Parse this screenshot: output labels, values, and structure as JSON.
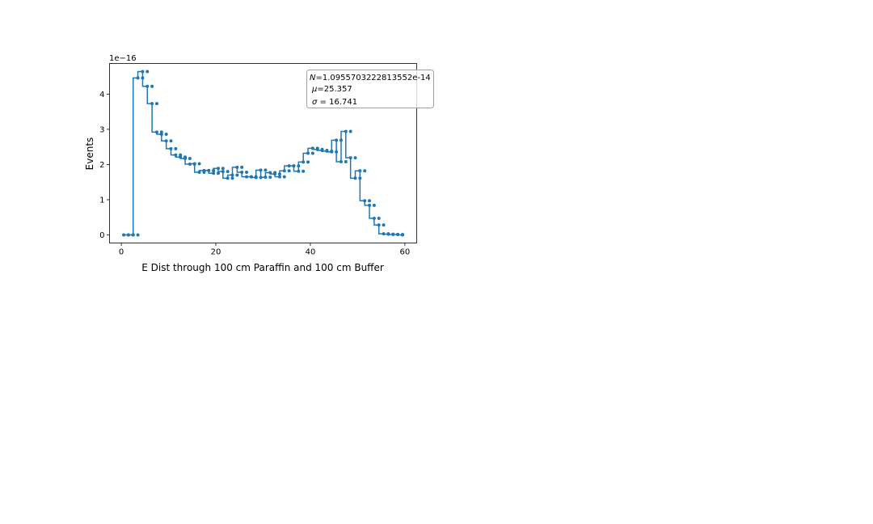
{
  "chart_data": {
    "type": "line",
    "drawstyle": "steps",
    "xlabel": "E Dist through 100 cm Paraffin and 100 cm Buffer",
    "ylabel": "Events",
    "y_offset_label": "1e−16",
    "xlim": [
      -2.5,
      62.5
    ],
    "ylim": [
      -0.23,
      4.87
    ],
    "y_scale_factor": 1e-16,
    "x_ticks": [
      0,
      20,
      40,
      60
    ],
    "x_tick_labels": [
      "0",
      "20",
      "40",
      "60"
    ],
    "y_ticks": [
      0,
      1,
      2,
      3,
      4
    ],
    "y_tick_labels": [
      "0",
      "1",
      "2",
      "3",
      "4"
    ],
    "grid": false,
    "color": "#1f77b4",
    "legend_box_lines": [
      {
        "symbol": "N",
        "text": "=1.0955703222813552e-14"
      },
      {
        "symbol": "μ",
        "text": "=25.357"
      },
      {
        "symbol": "σ",
        "text": " = 16.741"
      }
    ],
    "legend_box_placement": "top-right",
    "series": [
      {
        "x": [
          0.5,
          1.5,
          2.5,
          3.5,
          4.5,
          5.5,
          6.5,
          7.5,
          8.5,
          9.5,
          10.5,
          11.5,
          12.5,
          13.5,
          14.5,
          15.5,
          16.5,
          17.5,
          18.5,
          19.5,
          20.5,
          21.5,
          22.5,
          23.5,
          24.5,
          25.5,
          26.5,
          27.5,
          28.5,
          29.5,
          30.5,
          31.5,
          32.5,
          33.5,
          34.5,
          35.5,
          36.5,
          37.5,
          38.5,
          39.5,
          40.5,
          41.5,
          42.5,
          43.5,
          44.5,
          45.5,
          46.5,
          47.5,
          48.5,
          49.5,
          50.5,
          51.5,
          52.5,
          53.5,
          54.5,
          55.5,
          56.5,
          57.5,
          58.5,
          59.5
        ],
        "y": [
          0,
          0,
          0,
          4.46,
          4.64,
          4.22,
          3.73,
          2.92,
          2.86,
          2.67,
          2.45,
          2.27,
          2.21,
          2.17,
          2.01,
          2.02,
          1.78,
          1.83,
          1.83,
          1.75,
          1.89,
          1.8,
          1.61,
          1.7,
          1.92,
          1.78,
          1.65,
          1.65,
          1.63,
          1.84,
          1.64,
          1.77,
          1.73,
          1.65,
          1.82,
          1.96,
          1.96,
          1.81,
          2.07,
          2.32,
          2.46,
          2.43,
          2.4,
          2.38,
          2.36,
          2.69,
          2.08,
          2.94,
          2.19,
          1.61,
          1.82,
          0.97,
          0.84,
          0.47,
          0.28,
          0.03,
          0.02,
          0.01,
          0.01,
          0
        ]
      }
    ]
  }
}
